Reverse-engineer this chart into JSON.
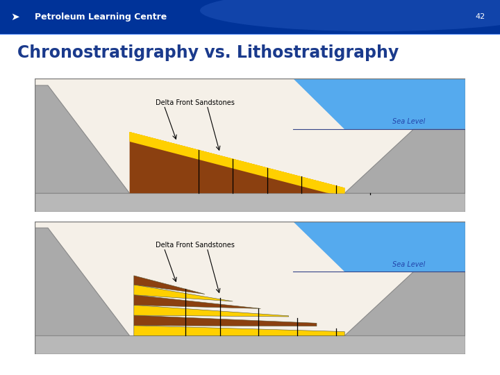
{
  "title": "Chronostratigraphy vs. Lithostratigraphy",
  "title_color": "#1a3a8c",
  "slide_bg_color": "#ffffff",
  "page_number": "42",
  "header_text": "Petroleum Learning Centre",
  "header_top_color": "#003399",
  "header_bottom_color": "#0055cc",
  "colors": {
    "gray_base": "#b0b0b0",
    "gray_cliff": "#999999",
    "brown": "#8B4010",
    "yellow": "#FFD000",
    "blue_sea": "#4499dd",
    "black": "#000000",
    "white": "#ffffff",
    "border": "#555555",
    "diagram_bg": "#e8e8e8"
  },
  "chrono_vlines": [
    0.38,
    0.46,
    0.54,
    0.62,
    0.7,
    0.78
  ],
  "litho_vlines": [
    0.35,
    0.43,
    0.52,
    0.61,
    0.7
  ],
  "sea_label_color": "#2244aa",
  "delta_label_color": "#000000"
}
